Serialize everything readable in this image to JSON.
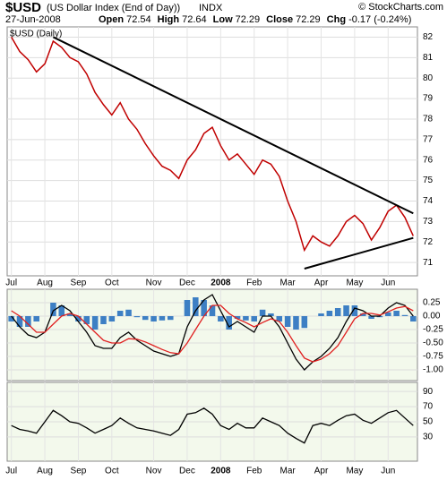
{
  "header": {
    "symbol": "$USD",
    "description": "(US Dollar Index (End of Day))",
    "exchange": "INDX",
    "credit": "© StockCharts.com",
    "date": "27-Jun-2008",
    "quote": [
      {
        "label": "Open",
        "value": "72.54"
      },
      {
        "label": "High",
        "value": "72.64"
      },
      {
        "label": "Low",
        "value": "72.29"
      },
      {
        "label": "Close",
        "value": "72.29"
      },
      {
        "label": "Chg",
        "value": "-0.17 (-0.24%)"
      }
    ]
  },
  "chart_data": [
    {
      "type": "line",
      "title": "$USD (Daily)",
      "grid": true,
      "categories": [
        "Jul",
        null,
        null,
        null,
        "Aug",
        null,
        null,
        null,
        "Sep",
        null,
        null,
        null,
        "Oct",
        null,
        null,
        null,
        null,
        "Nov",
        null,
        null,
        null,
        "Dec",
        null,
        null,
        null,
        "2008",
        null,
        null,
        null,
        "Feb",
        null,
        null,
        null,
        "Mar",
        null,
        null,
        null,
        "Apr",
        null,
        null,
        null,
        "May",
        null,
        null,
        null,
        "Jun",
        null,
        null,
        null
      ],
      "series": [
        {
          "color": "#c00000",
          "values": [
            82.0,
            81.3,
            80.9,
            80.3,
            80.7,
            81.8,
            81.5,
            81.0,
            80.8,
            80.2,
            79.3,
            78.7,
            78.2,
            78.8,
            78.0,
            77.5,
            76.8,
            76.2,
            75.7,
            75.5,
            75.1,
            76.0,
            76.5,
            77.3,
            77.6,
            76.7,
            76.0,
            76.3,
            75.8,
            75.3,
            76.0,
            75.8,
            75.2,
            74.0,
            73.0,
            71.6,
            72.3,
            72.0,
            71.8,
            72.3,
            73.0,
            73.3,
            72.9,
            72.1,
            72.7,
            73.5,
            73.8,
            73.2,
            72.3
          ]
        }
      ],
      "trendlines": [
        {
          "from_index": 5,
          "from_value": 82.0,
          "to_index": 48,
          "to_value": 73.4
        },
        {
          "from_index": 35,
          "from_value": 70.7,
          "to_index": 48,
          "to_value": 72.2
        }
      ],
      "ylim": [
        70.35,
        82.5
      ],
      "yticks": [
        71,
        72,
        73,
        74,
        75,
        76,
        77,
        78,
        79,
        80,
        81,
        82
      ]
    },
    {
      "type": "macd",
      "grid": true,
      "series": [
        {
          "type": "bar",
          "color": "#3d7fc4",
          "values": [
            -0.1,
            -0.2,
            -0.2,
            -0.1,
            0,
            0.25,
            0.2,
            0.05,
            -0.1,
            -0.15,
            -0.25,
            -0.15,
            -0.1,
            0.1,
            0.12,
            -0.02,
            -0.07,
            -0.1,
            -0.08,
            -0.07,
            0,
            0.3,
            0.35,
            0.3,
            0.2,
            -0.1,
            -0.25,
            -0.05,
            -0.08,
            -0.1,
            0.12,
            0.05,
            -0.1,
            -0.2,
            -0.25,
            -0.22,
            0,
            0.05,
            0.1,
            0.15,
            0.2,
            0.2,
            0.05,
            -0.05,
            -0.02,
            0.07,
            0.1,
            0.02,
            -0.1
          ]
        },
        {
          "type": "line",
          "color": "#000000",
          "values": [
            0.0,
            -0.2,
            -0.35,
            -0.4,
            -0.3,
            0.1,
            0.2,
            0.1,
            -0.1,
            -0.3,
            -0.55,
            -0.6,
            -0.6,
            -0.4,
            -0.3,
            -0.45,
            -0.55,
            -0.65,
            -0.7,
            -0.75,
            -0.7,
            -0.2,
            0.1,
            0.3,
            0.4,
            0.1,
            -0.2,
            -0.1,
            -0.2,
            -0.3,
            0.0,
            0.0,
            -0.2,
            -0.5,
            -0.8,
            -1.0,
            -0.85,
            -0.75,
            -0.6,
            -0.4,
            -0.1,
            0.15,
            0.1,
            0.0,
            0.0,
            0.15,
            0.25,
            0.2,
            0.0
          ]
        },
        {
          "type": "line",
          "color": "#e02020",
          "values": [
            0.1,
            0.0,
            -0.15,
            -0.3,
            -0.3,
            -0.15,
            0.0,
            0.05,
            0.0,
            -0.15,
            -0.3,
            -0.45,
            -0.5,
            -0.5,
            -0.42,
            -0.43,
            -0.48,
            -0.55,
            -0.62,
            -0.68,
            -0.7,
            -0.5,
            -0.25,
            0.0,
            0.2,
            0.2,
            0.05,
            -0.05,
            -0.12,
            -0.2,
            -0.12,
            -0.05,
            -0.1,
            -0.3,
            -0.55,
            -0.78,
            -0.85,
            -0.8,
            -0.7,
            -0.55,
            -0.3,
            -0.05,
            0.05,
            0.05,
            0.02,
            0.08,
            0.15,
            0.18,
            0.1
          ]
        }
      ],
      "ylim": [
        -1.2,
        0.5
      ],
      "yticks": [
        {
          "value": 0.25,
          "label": "0.25"
        },
        {
          "value": 0,
          "label": "0.00"
        },
        {
          "value": -0.25,
          "label": "-0.25"
        },
        {
          "value": -0.5,
          "label": "-0.50"
        },
        {
          "value": -0.75,
          "label": "-0.75"
        },
        {
          "value": -1,
          "label": "-1.00"
        }
      ]
    },
    {
      "type": "line",
      "grid": true,
      "series": [
        {
          "color": "#000000",
          "values": [
            45,
            40,
            38,
            35,
            50,
            65,
            58,
            50,
            48,
            42,
            35,
            40,
            45,
            55,
            48,
            42,
            40,
            38,
            35,
            32,
            40,
            60,
            62,
            68,
            60,
            45,
            40,
            48,
            42,
            42,
            55,
            50,
            45,
            35,
            28,
            22,
            45,
            48,
            45,
            52,
            58,
            60,
            52,
            48,
            55,
            62,
            65,
            55,
            45
          ]
        }
      ],
      "ylim": [
        -2,
        102
      ],
      "yticks": [
        90,
        70,
        50,
        30
      ]
    }
  ]
}
